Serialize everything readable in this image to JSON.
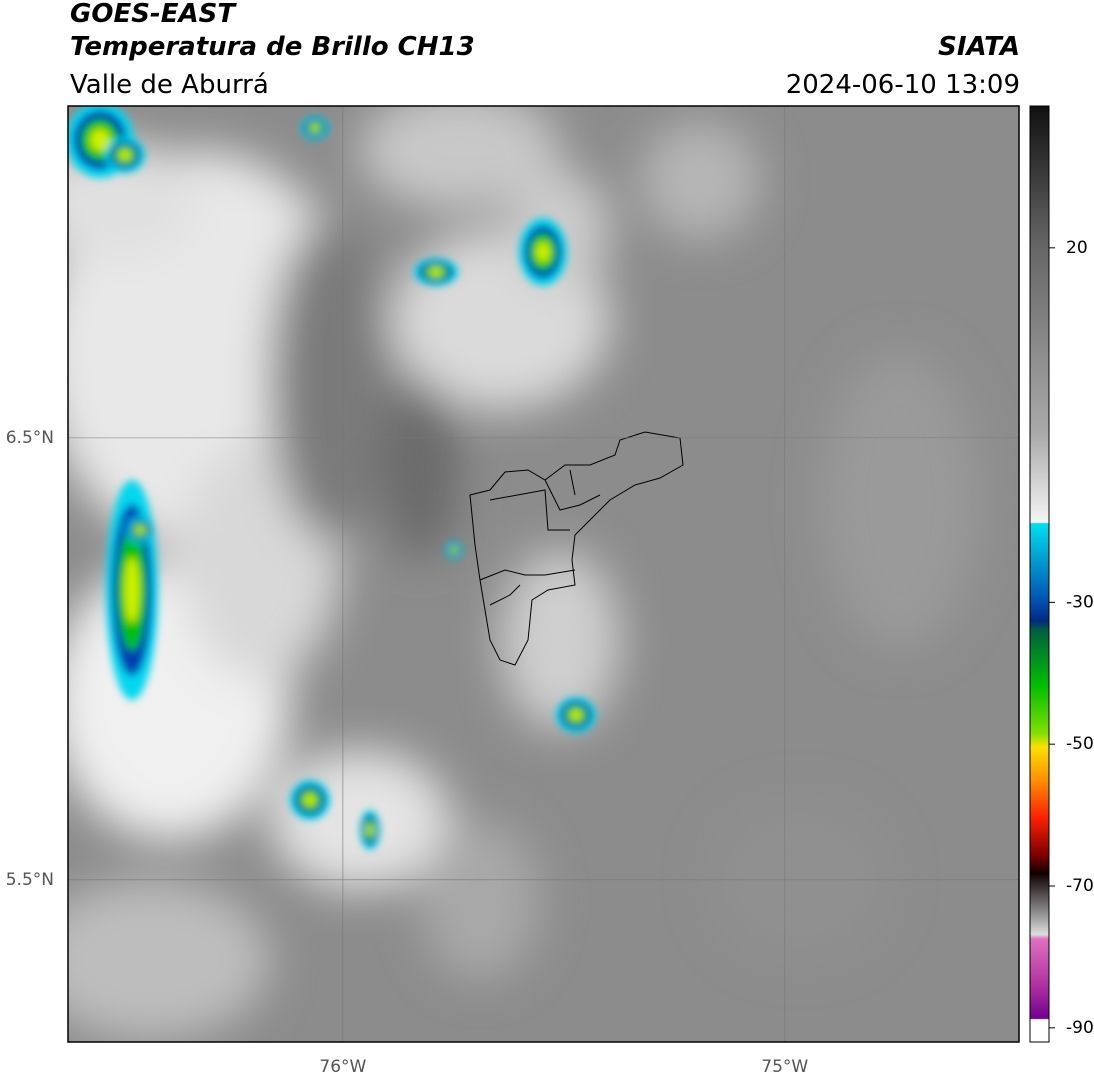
{
  "header": {
    "title": "GOES-EAST",
    "subtitle": "Temperatura de Brillo CH13",
    "source": "SIATA",
    "region": "Valle de Aburrá",
    "datetime": "2024-06-10 13:09"
  },
  "map": {
    "xlim": [
      -76.622,
      -74.47
    ],
    "ylim": [
      5.133,
      7.251
    ],
    "xticks": [
      {
        "value": -76,
        "label": "76°W"
      },
      {
        "value": -75,
        "label": "75°W"
      }
    ],
    "yticks": [
      {
        "value": 6.5,
        "label": "6.5°N"
      },
      {
        "value": 5.5,
        "label": "5.5°N"
      }
    ],
    "grid": true
  },
  "colorbar": {
    "lim": [
      -92,
      40
    ],
    "ticks": [
      20,
      -30,
      -50,
      -70,
      -90
    ]
  }
}
